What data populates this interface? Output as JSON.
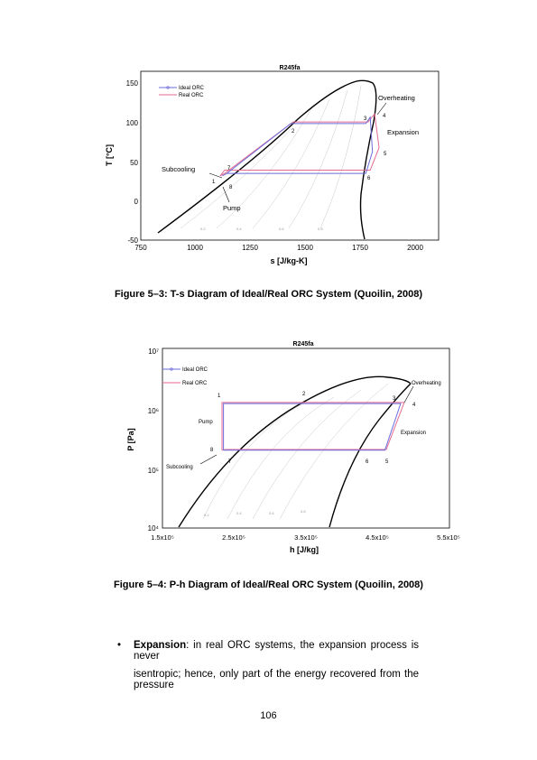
{
  "figures": [
    {
      "caption": "Figure 5–3: T-s Diagram of Ideal/Real ORC System (Quoilin, 2008)",
      "chart_data": {
        "type": "line",
        "title": "R245fa",
        "xlabel": "s [J/kg-K]",
        "ylabel": "T [°C]",
        "xlim": [
          750,
          2100
        ],
        "ylim": [
          -50,
          160
        ],
        "xticks": [
          "750",
          "1000",
          "1250",
          "1500",
          "1750",
          "2000"
        ],
        "yticks": [
          "150",
          "100",
          "50",
          "0",
          "-50"
        ],
        "legend": [
          "Ideal ORC",
          "Real ORC"
        ],
        "legend_placement": "top-left",
        "series": [
          {
            "name": "Ideal ORC",
            "x": [
              1120,
              1140,
              1430,
              1770,
              1790,
              1800,
              1770,
              1140,
              1120
            ],
            "y": [
              30,
              33,
              95,
              95,
              103,
              60,
              33,
              33,
              30
            ]
          },
          {
            "name": "Real ORC",
            "x": [
              1110,
              1130,
              1440,
              1780,
              1810,
              1830,
              1790,
              1130,
              1110
            ],
            "y": [
              30,
              33,
              97,
              97,
              107,
              65,
              37,
              37,
              30
            ]
          }
        ],
        "point_labels": [
          "1",
          "2",
          "3",
          "4",
          "5",
          "6",
          "7",
          "8"
        ],
        "annotations": [
          "Subcooling",
          "Pump",
          "Overheating",
          "Expansion"
        ],
        "quality_labels": [
          "0.2",
          "0.4",
          "0.6",
          "0.8"
        ]
      }
    },
    {
      "caption": "Figure 5–4: P-h Diagram of Ideal/Real ORC System (Quoilin, 2008)",
      "chart_data": {
        "type": "line",
        "title": "R245fa",
        "xlabel": "h [J/kg]",
        "ylabel": "P [Pa]",
        "yscale": "log",
        "xlim": [
          150000,
          550000
        ],
        "ylim": [
          10000,
          10000000
        ],
        "xticks": [
          "1.5x10⁵",
          "2.5x10⁵",
          "3.5x10⁵",
          "4.5x10⁵",
          "5.5x10⁵"
        ],
        "yticks": [
          "10⁷",
          "10⁶",
          "10⁵",
          "10⁴"
        ],
        "legend": [
          "Ideal ORC",
          "Real ORC"
        ],
        "legend_placement": "top-left",
        "series": [
          {
            "name": "Ideal ORC",
            "x": [
              235000,
              235000,
              482000,
              460000,
              240000,
              235000
            ],
            "y": [
              200000,
              1200000,
              1200000,
              200000,
              200000,
              200000
            ]
          },
          {
            "name": "Real ORC",
            "x": [
              233000,
              233000,
              487000,
              462000,
              238000,
              233000
            ],
            "y": [
              200000,
              1250000,
              1250000,
              205000,
              205000,
              200000
            ]
          }
        ],
        "point_labels": [
          "1",
          "2",
          "3",
          "4",
          "5",
          "6",
          "7",
          "8"
        ],
        "annotations": [
          "Pump",
          "Subcooling",
          "Overheating",
          "Expansion"
        ],
        "quality_labels": [
          "0.2",
          "0.4",
          "0.6",
          "0.8"
        ]
      }
    }
  ],
  "bullet": {
    "symbol": "•",
    "term": "Expansion",
    "line1_rest": ": in real ORC systems, the expansion process is never",
    "line2": "isentropic; hence, only part of the energy recovered from the pressure"
  },
  "page_number": "106"
}
